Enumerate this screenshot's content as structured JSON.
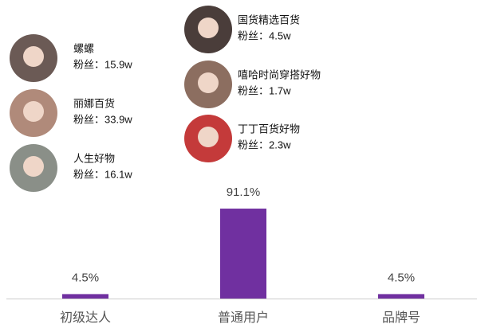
{
  "chart_data": {
    "type": "bar",
    "categories": [
      "初级达人",
      "普通用户",
      "品牌号"
    ],
    "values": [
      4.5,
      91.1,
      4.5
    ],
    "value_labels": [
      "4.5%",
      "91.1%",
      "4.5%"
    ],
    "color": "#7030a0",
    "ylim": [
      0,
      100
    ]
  },
  "profiles": [
    {
      "name": "螺螺",
      "fans": "粉丝：15.9w"
    },
    {
      "name": "丽娜百货",
      "fans": "粉丝：33.9w"
    },
    {
      "name": "人生好物",
      "fans": "粉丝：16.1w"
    },
    {
      "name": "国货精选百货",
      "fans": "粉丝：4.5w"
    },
    {
      "name": "嘻哈时尚穿搭好物",
      "fans": "粉丝：1.7w"
    },
    {
      "name": "丁丁百货好物",
      "fans": "粉丝：2.3w"
    }
  ]
}
